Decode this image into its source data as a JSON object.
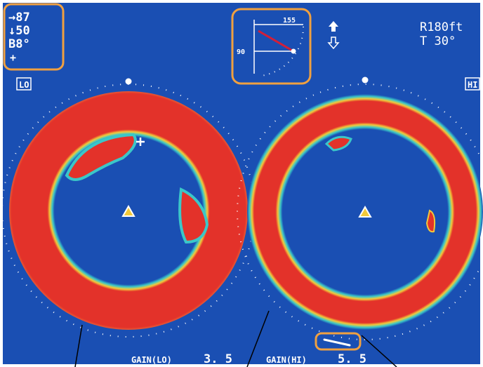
{
  "readout": {
    "line1": "→87",
    "line2": "↓50",
    "line3": "B8°",
    "marker": "+"
  },
  "range_tilt": {
    "range": "R180ft",
    "tilt": "T 30°"
  },
  "tilt_indicator": {
    "label_top": "155",
    "label_left": "90"
  },
  "panels": {
    "left_label": "LO",
    "right_label": "HI"
  },
  "gain": {
    "lo_label": "GAIN(LO)",
    "lo_value": "3. 5",
    "hi_label": "GAIN(HI)",
    "hi_value": "5. 5"
  },
  "icons": {
    "ship_marker": "own-ship-triangle-icon",
    "cursor": "cursor-cross-icon",
    "up_arrow": "up-arrow-icon",
    "down_arrow": "down-arrow-icon"
  },
  "colors": {
    "background": "#1a4fb3",
    "echo_strong": "#e3322a",
    "echo_mid": "#f2c93a",
    "echo_weak": "#3bc7c8",
    "highlight_box": "#f0a040"
  }
}
